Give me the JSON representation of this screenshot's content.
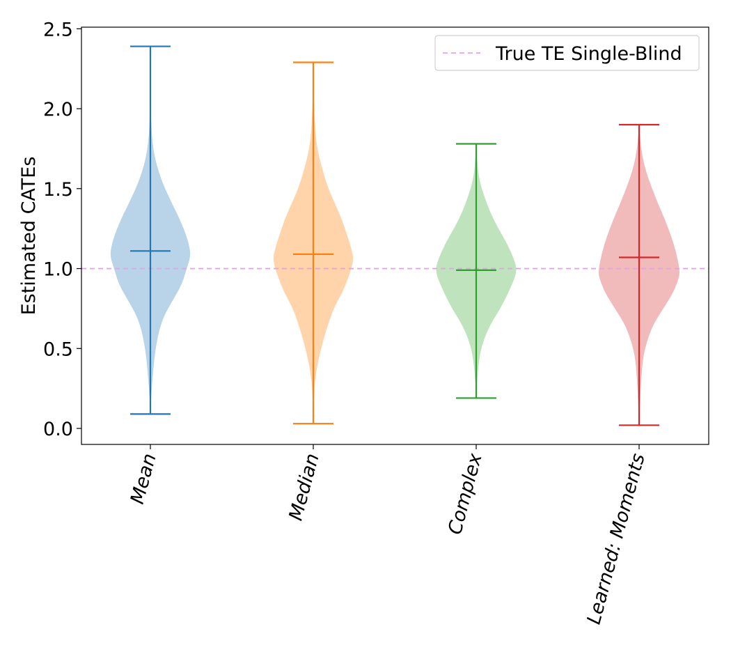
{
  "chart_data": {
    "type": "violin",
    "title": "",
    "xlabel": "",
    "ylabel": "Estimated CATEs",
    "ylim": [
      -0.1,
      2.51
    ],
    "yticks": [
      "0.0",
      "0.5",
      "1.0",
      "1.5",
      "2.0",
      "2.5"
    ],
    "ytick_values": [
      0.0,
      0.5,
      1.0,
      1.5,
      2.0,
      2.5
    ],
    "categories": [
      "Mean",
      "Median",
      "Complex",
      "Learned: Moments"
    ],
    "x_tick_rotation_deg": 75,
    "series": [
      {
        "category": "Mean",
        "color": "#1f77b4",
        "fill": "#b9d4e8",
        "min": 0.09,
        "max": 2.39,
        "mean": 1.11,
        "density_profile": [
          [
            0.09,
            0.0
          ],
          [
            0.2,
            0.02
          ],
          [
            0.3,
            0.05
          ],
          [
            0.45,
            0.1
          ],
          [
            0.6,
            0.2
          ],
          [
            0.7,
            0.33
          ],
          [
            0.8,
            0.55
          ],
          [
            0.9,
            0.78
          ],
          [
            1.0,
            0.9
          ],
          [
            1.08,
            1.0
          ],
          [
            1.15,
            0.96
          ],
          [
            1.25,
            0.83
          ],
          [
            1.35,
            0.65
          ],
          [
            1.45,
            0.45
          ],
          [
            1.55,
            0.28
          ],
          [
            1.65,
            0.15
          ],
          [
            1.75,
            0.07
          ],
          [
            1.85,
            0.03
          ],
          [
            2.0,
            0.01
          ],
          [
            2.39,
            0.0
          ]
        ]
      },
      {
        "category": "Median",
        "color": "#ff7f0e",
        "fill": "#ffd4ab",
        "min": 0.03,
        "max": 2.29,
        "mean": 1.09,
        "density_profile": [
          [
            0.03,
            0.0
          ],
          [
            0.15,
            0.01
          ],
          [
            0.3,
            0.04
          ],
          [
            0.45,
            0.14
          ],
          [
            0.6,
            0.3
          ],
          [
            0.75,
            0.5
          ],
          [
            0.85,
            0.72
          ],
          [
            0.95,
            0.88
          ],
          [
            1.05,
            1.0
          ],
          [
            1.12,
            0.95
          ],
          [
            1.2,
            0.85
          ],
          [
            1.3,
            0.72
          ],
          [
            1.4,
            0.55
          ],
          [
            1.5,
            0.37
          ],
          [
            1.6,
            0.25
          ],
          [
            1.7,
            0.14
          ],
          [
            1.8,
            0.07
          ],
          [
            1.95,
            0.03
          ],
          [
            2.1,
            0.01
          ],
          [
            2.29,
            0.0
          ]
        ]
      },
      {
        "category": "Complex",
        "color": "#2ca02c",
        "fill": "#bfe3bd",
        "min": 0.19,
        "max": 1.78,
        "mean": 0.99,
        "density_profile": [
          [
            0.19,
            0.0
          ],
          [
            0.3,
            0.02
          ],
          [
            0.45,
            0.08
          ],
          [
            0.55,
            0.18
          ],
          [
            0.65,
            0.35
          ],
          [
            0.75,
            0.6
          ],
          [
            0.85,
            0.8
          ],
          [
            0.95,
            0.97
          ],
          [
            1.0,
            1.0
          ],
          [
            1.05,
            0.95
          ],
          [
            1.15,
            0.78
          ],
          [
            1.25,
            0.55
          ],
          [
            1.35,
            0.35
          ],
          [
            1.45,
            0.2
          ],
          [
            1.55,
            0.08
          ],
          [
            1.65,
            0.03
          ],
          [
            1.78,
            0.0
          ]
        ]
      },
      {
        "category": "Learned: Moments",
        "color": "#d62728",
        "fill": "#f1babb",
        "min": 0.02,
        "max": 1.9,
        "mean": 1.07,
        "density_profile": [
          [
            0.02,
            0.0
          ],
          [
            0.15,
            0.02
          ],
          [
            0.3,
            0.05
          ],
          [
            0.45,
            0.1
          ],
          [
            0.55,
            0.2
          ],
          [
            0.65,
            0.35
          ],
          [
            0.75,
            0.6
          ],
          [
            0.85,
            0.85
          ],
          [
            0.95,
            1.0
          ],
          [
            1.0,
            1.0
          ],
          [
            1.1,
            0.92
          ],
          [
            1.2,
            0.8
          ],
          [
            1.3,
            0.65
          ],
          [
            1.4,
            0.48
          ],
          [
            1.5,
            0.32
          ],
          [
            1.6,
            0.18
          ],
          [
            1.7,
            0.08
          ],
          [
            1.8,
            0.03
          ],
          [
            1.9,
            0.0
          ]
        ]
      }
    ],
    "reference_line": {
      "y": 1.0,
      "label": "True TE Single-Blind",
      "color": "#e8a0e8",
      "style": "dashed"
    },
    "legend": {
      "position": "top-right",
      "entries": [
        "True TE Single-Blind"
      ]
    },
    "grid": false
  }
}
